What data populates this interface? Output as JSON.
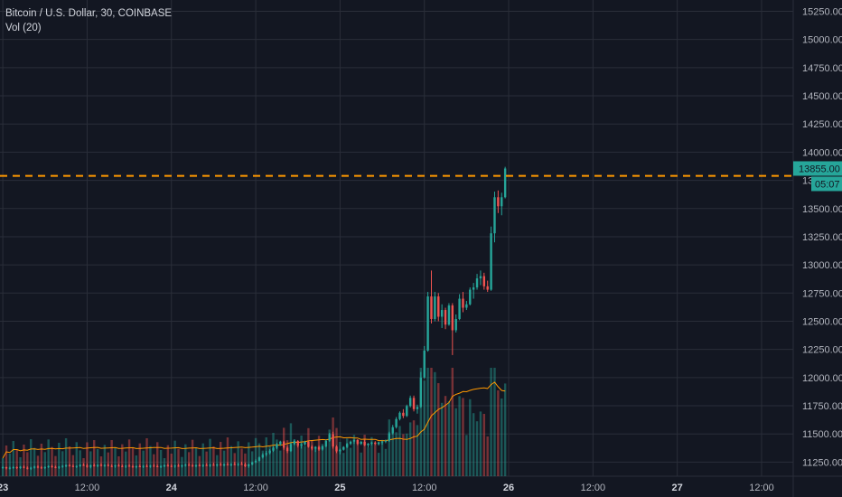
{
  "legend": {
    "symbol": "Bitcoin / U.S. Dollar, 30, COINBASE",
    "indicator": "Vol (20)"
  },
  "colors": {
    "background": "#131722",
    "grid": "#2a2e39",
    "up": "#26a69a",
    "down": "#ef5350",
    "up_volume": "#26a69a",
    "down_volume": "#ef5350",
    "volume_ma": "#ff9800",
    "price_line": "#ff9800"
  },
  "chart_data": {
    "type": "candlestick",
    "y_axis": {
      "range": [
        11125,
        15350
      ],
      "ticks": [
        "15250.00",
        "15000.00",
        "14750.00",
        "14500.00",
        "14250.00",
        "14000.00",
        "13750.00",
        "13500.00",
        "13250.00",
        "13000.00",
        "12750.00",
        "12500.00",
        "12250.00",
        "12000.00",
        "11750.00",
        "11500.00",
        "11250.00"
      ],
      "tick_values": [
        15250,
        15000,
        14750,
        14500,
        14250,
        14000,
        13750,
        13500,
        13250,
        13000,
        12750,
        12500,
        12250,
        12000,
        11750,
        11500,
        11250
      ]
    },
    "x_axis": {
      "ticks": [
        {
          "label": "23",
          "major": true,
          "hour": 0
        },
        {
          "label": "12:00",
          "major": false,
          "hour": 12
        },
        {
          "label": "24",
          "major": true,
          "hour": 24
        },
        {
          "label": "12:00",
          "major": false,
          "hour": 36
        },
        {
          "label": "25",
          "major": true,
          "hour": 48
        },
        {
          "label": "12:00",
          "major": false,
          "hour": 60
        },
        {
          "label": "26",
          "major": true,
          "hour": 72
        },
        {
          "label": "12:00",
          "major": false,
          "hour": 84
        },
        {
          "label": "27",
          "major": true,
          "hour": 96
        },
        {
          "label": "12:00",
          "major": false,
          "hour": 108
        }
      ],
      "range_hours": [
        -0.4,
        112.5
      ]
    },
    "last_price": {
      "value": 13855.0,
      "label": "13855.00",
      "countdown": "05:07",
      "line_level": 13790
    },
    "grid": true,
    "candles_start_hour": 0,
    "interval_minutes": 30,
    "candles": [
      [
        11200,
        11215,
        11190,
        11205
      ],
      [
        11205,
        11210,
        11185,
        11195
      ],
      [
        11195,
        11210,
        11185,
        11200
      ],
      [
        11200,
        11215,
        11190,
        11205
      ],
      [
        11205,
        11212,
        11188,
        11198
      ],
      [
        11198,
        11215,
        11190,
        11208
      ],
      [
        11208,
        11220,
        11195,
        11200
      ],
      [
        11200,
        11212,
        11185,
        11192
      ],
      [
        11192,
        11208,
        11180,
        11200
      ],
      [
        11200,
        11218,
        11192,
        11210
      ],
      [
        11210,
        11222,
        11195,
        11203
      ],
      [
        11203,
        11215,
        11190,
        11198
      ],
      [
        11198,
        11212,
        11188,
        11206
      ],
      [
        11206,
        11222,
        11198,
        11214
      ],
      [
        11214,
        11226,
        11200,
        11207
      ],
      [
        11207,
        11218,
        11195,
        11201
      ],
      [
        11201,
        11215,
        11190,
        11209
      ],
      [
        11209,
        11224,
        11200,
        11216
      ],
      [
        11216,
        11230,
        11205,
        11222
      ],
      [
        11222,
        11235,
        11210,
        11215
      ],
      [
        11215,
        11228,
        11205,
        11210
      ],
      [
        11210,
        11222,
        11198,
        11215
      ],
      [
        11215,
        11232,
        11208,
        11225
      ],
      [
        11225,
        11240,
        11215,
        11220
      ],
      [
        11220,
        11236,
        11200,
        11208
      ],
      [
        11208,
        11228,
        11195,
        11222
      ],
      [
        11222,
        11238,
        11210,
        11215
      ],
      [
        11215,
        11230,
        11205,
        11225
      ],
      [
        11225,
        11240,
        11212,
        11218
      ],
      [
        11218,
        11232,
        11208,
        11223
      ],
      [
        11223,
        11238,
        11212,
        11216
      ],
      [
        11216,
        11230,
        11205,
        11212
      ],
      [
        11212,
        11226,
        11200,
        11220
      ],
      [
        11220,
        11235,
        11210,
        11215
      ],
      [
        11215,
        11228,
        11205,
        11210
      ],
      [
        11210,
        11224,
        11198,
        11218
      ],
      [
        11218,
        11232,
        11208,
        11212
      ],
      [
        11212,
        11225,
        11200,
        11207
      ],
      [
        11207,
        11220,
        11195,
        11214
      ],
      [
        11214,
        11228,
        11205,
        11210
      ],
      [
        11210,
        11224,
        11198,
        11216
      ],
      [
        11216,
        11230,
        11205,
        11212
      ],
      [
        11212,
        11226,
        11200,
        11218
      ],
      [
        11218,
        11234,
        11208,
        11214
      ],
      [
        11214,
        11228,
        11204,
        11209
      ],
      [
        11209,
        11222,
        11197,
        11215
      ],
      [
        11215,
        11230,
        11205,
        11221
      ],
      [
        11221,
        11236,
        11210,
        11216
      ],
      [
        11216,
        11230,
        11205,
        11212
      ],
      [
        11212,
        11226,
        11200,
        11219
      ],
      [
        11219,
        11234,
        11208,
        11214
      ],
      [
        11214,
        11228,
        11202,
        11220
      ],
      [
        11220,
        11236,
        11210,
        11226
      ],
      [
        11226,
        11242,
        11215,
        11220
      ],
      [
        11220,
        11234,
        11208,
        11215
      ],
      [
        11215,
        11230,
        11204,
        11222
      ],
      [
        11222,
        11238,
        11212,
        11218
      ],
      [
        11218,
        11232,
        11206,
        11224
      ],
      [
        11224,
        11240,
        11214,
        11219
      ],
      [
        11219,
        11234,
        11208,
        11226
      ],
      [
        11226,
        11244,
        11216,
        11221
      ],
      [
        11221,
        11236,
        11210,
        11228
      ],
      [
        11228,
        11246,
        11218,
        11223
      ],
      [
        11223,
        11238,
        11212,
        11230
      ],
      [
        11230,
        11248,
        11220,
        11225
      ],
      [
        11225,
        11240,
        11214,
        11232
      ],
      [
        11232,
        11252,
        11222,
        11226
      ],
      [
        11226,
        11242,
        11215,
        11234
      ],
      [
        11234,
        11254,
        11224,
        11230
      ],
      [
        11230,
        11246,
        11205,
        11214
      ],
      [
        11214,
        11236,
        11200,
        11230
      ],
      [
        11230,
        11255,
        11222,
        11248
      ],
      [
        11248,
        11275,
        11240,
        11262
      ],
      [
        11262,
        11300,
        11255,
        11292
      ],
      [
        11292,
        11330,
        11282,
        11316
      ],
      [
        11316,
        11350,
        11300,
        11330
      ],
      [
        11330,
        11365,
        11318,
        11352
      ],
      [
        11352,
        11390,
        11340,
        11378
      ],
      [
        11378,
        11420,
        11365,
        11408
      ],
      [
        11408,
        11440,
        11395,
        11432
      ],
      [
        11432,
        11440,
        11360,
        11378
      ],
      [
        11378,
        11395,
        11330,
        11348
      ],
      [
        11348,
        11420,
        11340,
        11410
      ],
      [
        11410,
        11452,
        11400,
        11438
      ],
      [
        11438,
        11446,
        11380,
        11396
      ],
      [
        11396,
        11420,
        11370,
        11408
      ],
      [
        11408,
        11440,
        11398,
        11430
      ],
      [
        11430,
        11438,
        11378,
        11386
      ],
      [
        11386,
        11400,
        11355,
        11370
      ],
      [
        11370,
        11392,
        11340,
        11384
      ],
      [
        11384,
        11396,
        11350,
        11362
      ],
      [
        11362,
        11398,
        11352,
        11390
      ],
      [
        11390,
        11450,
        11380,
        11440
      ],
      [
        11440,
        11510,
        11430,
        11498
      ],
      [
        11498,
        11520,
        11370,
        11388
      ],
      [
        11388,
        11400,
        11330,
        11346
      ],
      [
        11346,
        11370,
        11320,
        11360
      ],
      [
        11360,
        11392,
        11352,
        11384
      ],
      [
        11384,
        11420,
        11374,
        11412
      ],
      [
        11412,
        11442,
        11400,
        11432
      ],
      [
        11432,
        11455,
        11412,
        11446
      ],
      [
        11446,
        11454,
        11400,
        11412
      ],
      [
        11412,
        11440,
        11402,
        11430
      ],
      [
        11430,
        11448,
        11392,
        11400
      ],
      [
        11400,
        11420,
        11380,
        11414
      ],
      [
        11414,
        11432,
        11400,
        11424
      ],
      [
        11424,
        11436,
        11402,
        11410
      ],
      [
        11410,
        11432,
        11398,
        11426
      ],
      [
        11426,
        11440,
        11405,
        11432
      ],
      [
        11432,
        11450,
        11418,
        11440
      ],
      [
        11440,
        11520,
        11430,
        11506
      ],
      [
        11506,
        11580,
        11495,
        11560
      ],
      [
        11560,
        11650,
        11548,
        11632
      ],
      [
        11632,
        11700,
        11620,
        11688
      ],
      [
        11688,
        11720,
        11640,
        11660
      ],
      [
        11660,
        11760,
        11650,
        11748
      ],
      [
        11748,
        11840,
        11735,
        11820
      ],
      [
        11820,
        11840,
        11700,
        11720
      ],
      [
        11720,
        11760,
        11680,
        11740
      ],
      [
        11740,
        12050,
        11730,
        12000
      ],
      [
        12000,
        12280,
        11990,
        12240
      ],
      [
        12240,
        12760,
        12230,
        12720
      ],
      [
        12720,
        12950,
        12480,
        12520
      ],
      [
        12520,
        12760,
        12500,
        12720
      ],
      [
        12720,
        12750,
        12500,
        12540
      ],
      [
        12540,
        12650,
        12440,
        12600
      ],
      [
        12600,
        12620,
        12430,
        12470
      ],
      [
        12470,
        12660,
        12460,
        12640
      ],
      [
        12640,
        12660,
        12200,
        12420
      ],
      [
        12420,
        12560,
        12400,
        12520
      ],
      [
        12520,
        12740,
        12510,
        12700
      ],
      [
        12700,
        12760,
        12580,
        12620
      ],
      [
        12620,
        12680,
        12600,
        12650
      ],
      [
        12650,
        12800,
        12640,
        12780
      ],
      [
        12780,
        12840,
        12700,
        12800
      ],
      [
        12800,
        12920,
        12780,
        12880
      ],
      [
        12880,
        12950,
        12820,
        12900
      ],
      [
        12900,
        12930,
        12780,
        12810
      ],
      [
        12810,
        12860,
        12760,
        12780
      ],
      [
        12780,
        13340,
        12770,
        13280
      ],
      [
        13280,
        13650,
        13200,
        13600
      ],
      [
        13600,
        13660,
        13460,
        13520
      ],
      [
        13520,
        13640,
        13440,
        13600
      ],
      [
        13600,
        13870,
        13590,
        13855
      ]
    ],
    "volumes": [
      [
        0,
        0.012
      ],
      [
        0.5,
        0.01
      ],
      [
        1,
        0.009
      ],
      [
        1.5,
        0.008
      ],
      [
        2,
        0.011
      ],
      [
        2.5,
        0.012
      ],
      [
        3,
        0.01
      ],
      [
        3.5,
        0.008
      ],
      [
        4,
        0.009
      ],
      [
        4.5,
        0.011
      ],
      [
        5,
        0.01
      ],
      [
        5.5,
        0.009
      ],
      [
        6,
        0.01
      ],
      [
        6.5,
        0.011
      ],
      [
        7,
        0.012
      ],
      [
        7.5,
        0.01
      ],
      [
        8,
        0.011
      ],
      [
        8.5,
        0.012
      ],
      [
        9,
        0.01
      ],
      [
        9.5,
        0.013
      ],
      [
        10,
        0.015
      ],
      [
        10.5,
        0.02
      ],
      [
        11,
        0.03
      ],
      [
        11.5,
        0.032
      ],
      [
        12,
        0.025
      ],
      [
        12.5,
        0.035
      ],
      [
        13,
        0.03
      ],
      [
        13.5,
        0.045
      ],
      [
        14,
        0.035
      ],
      [
        14.5,
        0.03
      ],
      [
        15,
        0.025
      ],
      [
        15.5,
        0.04
      ],
      [
        16,
        0.028
      ],
      [
        16.5,
        0.03
      ],
      [
        17,
        0.025
      ],
      [
        17.5,
        0.028
      ],
      [
        18,
        0.02
      ],
      [
        18.5,
        0.024
      ],
      [
        19,
        0.02
      ],
      [
        19.5,
        0.018
      ]
    ],
    "volume_ma": []
  }
}
